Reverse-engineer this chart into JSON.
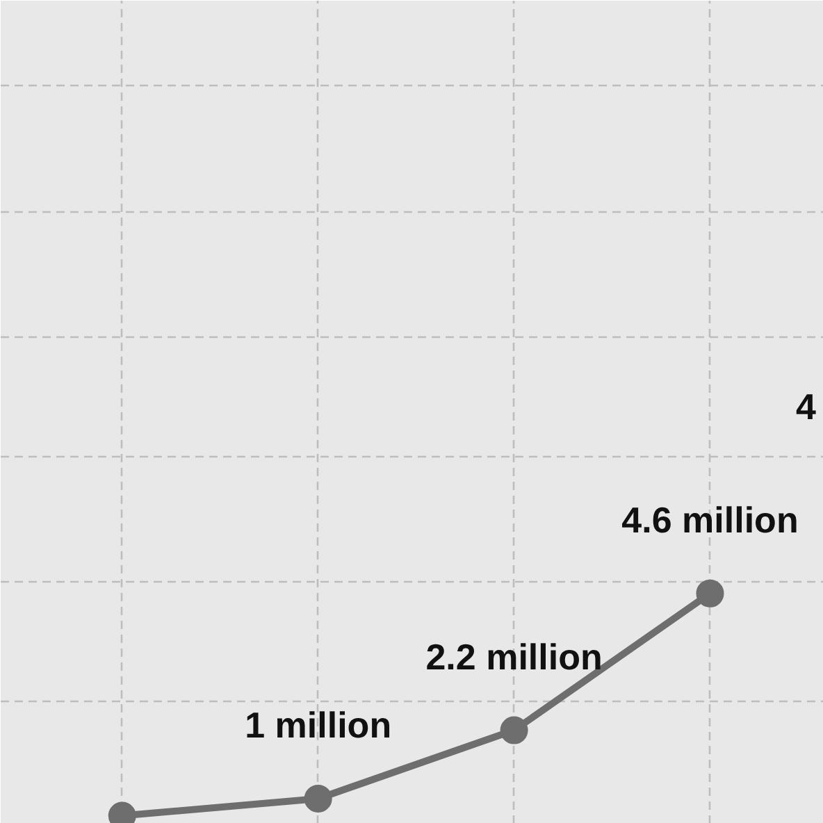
{
  "chart_data": {
    "type": "line",
    "categories": [
      null,
      null,
      null,
      null
    ],
    "series": [
      {
        "color": "#6e6e6e",
        "values": [
          0.7,
          1,
          2.2,
          4.6
        ],
        "value_labels": [
          null,
          "1 million",
          "2.2 million",
          "4.6 million"
        ]
      }
    ],
    "ylim": [
      0.56,
      15
    ],
    "yticks": [
      {
        "value": 2.7,
        "label": null
      },
      {
        "value": 4.8,
        "label": null
      },
      {
        "value": 7,
        "label": null
      },
      {
        "value": 9.1,
        "label": null
      },
      {
        "value": 11.3,
        "label": null
      },
      {
        "value": 13.5,
        "label": null
      }
    ],
    "grid": true,
    "marker": "circle",
    "line_style": "solid",
    "tick_labels": false,
    "annotations": [
      "4"
    ]
  }
}
